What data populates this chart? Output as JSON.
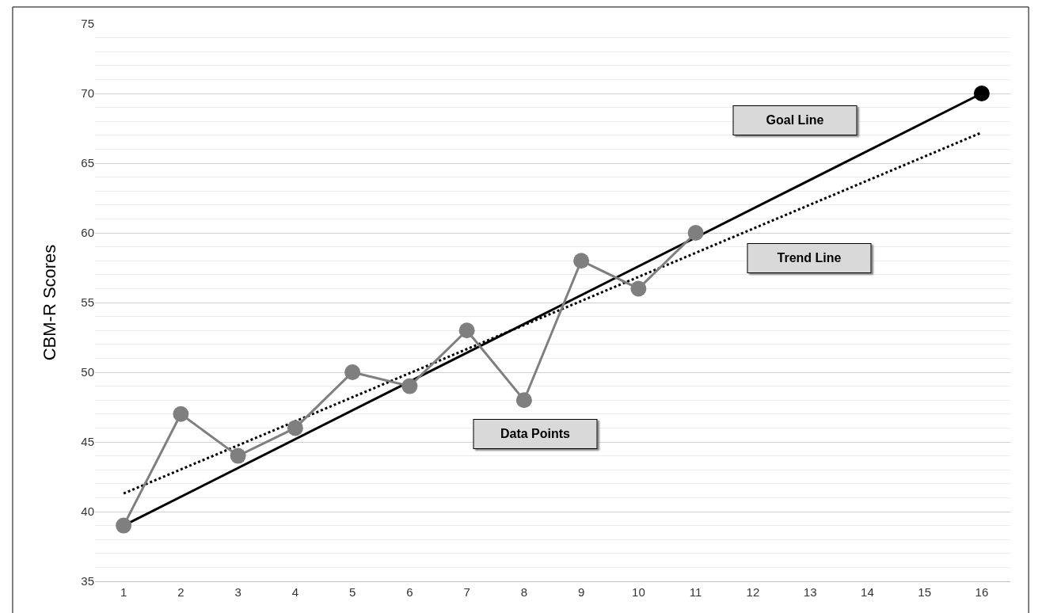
{
  "chart_data": {
    "type": "line",
    "ylabel": "CBM-R Scores",
    "xlim": [
      0.5,
      16.5
    ],
    "xticks": [
      1,
      2,
      3,
      4,
      5,
      6,
      7,
      8,
      9,
      10,
      11,
      12,
      13,
      14,
      15,
      16
    ],
    "ylim": [
      35,
      75
    ],
    "yticks": [
      35,
      40,
      45,
      50,
      55,
      60,
      65,
      70,
      75
    ],
    "grid": "y",
    "series": [
      {
        "color": "#000000",
        "x": [
          1,
          16
        ],
        "values": [
          39,
          70
        ],
        "marker": "none",
        "line_style": "solid"
      },
      {
        "color": "#000000",
        "x": [
          1,
          16
        ],
        "values": [
          41.3,
          67.2
        ],
        "marker": "none",
        "line_style": "dotted"
      },
      {
        "color": "#7f7f7f",
        "x": [
          1,
          2,
          3,
          4,
          5,
          6,
          7,
          8,
          9,
          10,
          11
        ],
        "values": [
          39,
          47,
          44,
          46,
          50,
          49,
          53,
          48,
          58,
          56,
          60
        ],
        "marker": "circle",
        "line_style": "solid"
      },
      {
        "type": "scatter",
        "color": "#000000",
        "x": [
          16
        ],
        "values": [
          70
        ],
        "marker": "circle"
      }
    ],
    "annotations": [
      "Goal Line",
      "Trend Line",
      "Data Points"
    ]
  }
}
